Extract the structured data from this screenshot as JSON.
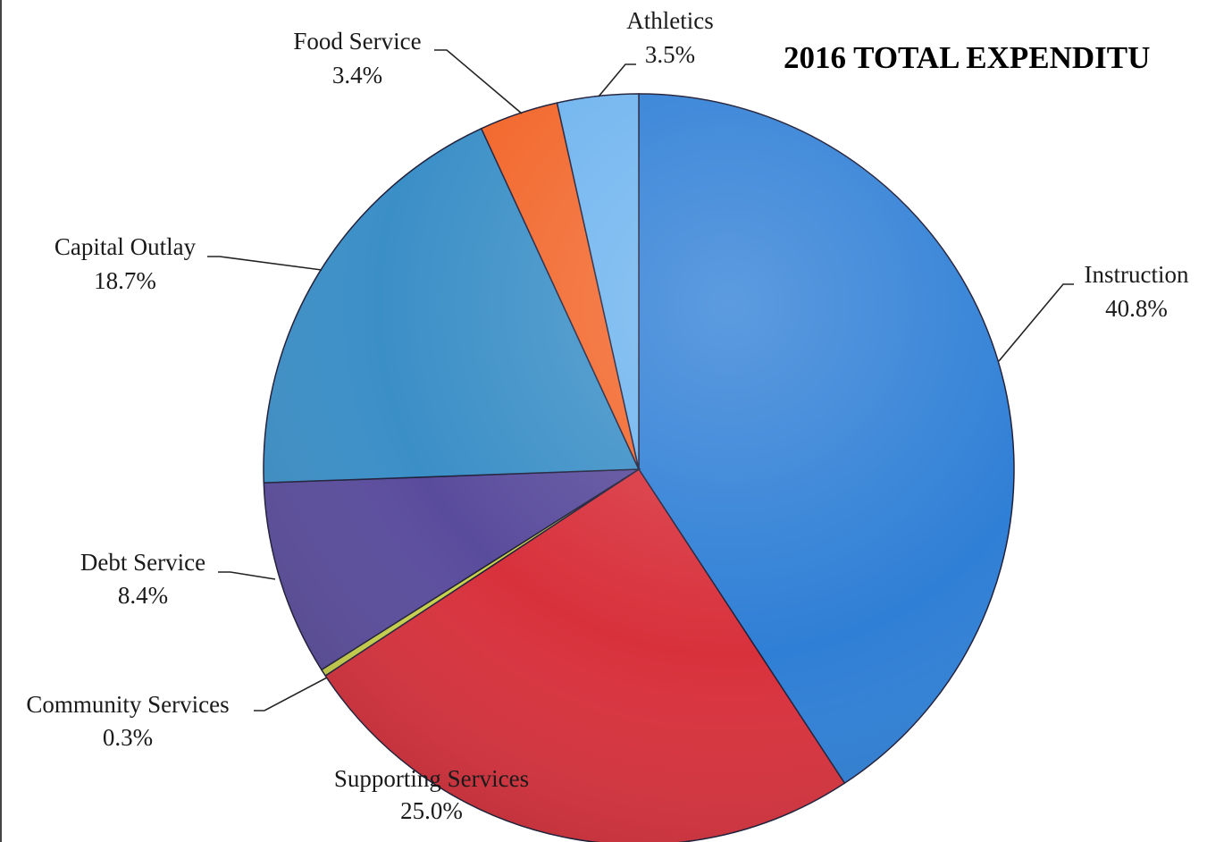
{
  "chart_data": {
    "type": "pie",
    "title": "2016 TOTAL EXPENDITU",
    "unit": "%",
    "slices": [
      {
        "label": "Instruction",
        "value": 40.8,
        "value_text": "40.8%",
        "color": "#2f7fd6"
      },
      {
        "label": "Supporting Services",
        "value": 25.0,
        "value_text": "25.0%",
        "color": "#d8313c"
      },
      {
        "label": "Community Services",
        "value": 0.3,
        "value_text": "0.3%",
        "color": "#c9d24a"
      },
      {
        "label": "Debt Service",
        "value": 8.4,
        "value_text": "8.4%",
        "color": "#5a4c9c"
      },
      {
        "label": "Capital Outlay",
        "value": 18.7,
        "value_text": "18.7%",
        "color": "#3b8fc7"
      },
      {
        "label": "Food Service",
        "value": 3.4,
        "value_text": "3.4%",
        "color": "#f2662a"
      },
      {
        "label": "Athletics",
        "value": 3.5,
        "value_text": "3.5%",
        "color": "#6fb4ef"
      }
    ]
  }
}
